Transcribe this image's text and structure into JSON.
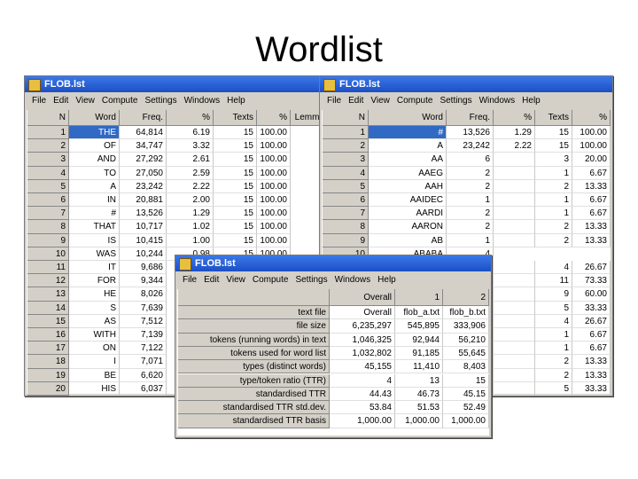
{
  "title": "Wordlist",
  "windows": [
    {
      "title": "FLOB.lst",
      "menu": [
        "File",
        "Edit",
        "View",
        "Compute",
        "Settings",
        "Windows",
        "Help"
      ],
      "columns": [
        "N",
        "Word",
        "Freq.",
        "%",
        "Texts",
        "%",
        "Lemmas"
      ],
      "rows": [
        [
          "1",
          "THE",
          "64,814",
          "6.19",
          "15",
          "100.00"
        ],
        [
          "2",
          "OF",
          "34,747",
          "3.32",
          "15",
          "100.00"
        ],
        [
          "3",
          "AND",
          "27,292",
          "2.61",
          "15",
          "100.00"
        ],
        [
          "4",
          "TO",
          "27,050",
          "2.59",
          "15",
          "100.00"
        ],
        [
          "5",
          "A",
          "23,242",
          "2.22",
          "15",
          "100.00"
        ],
        [
          "6",
          "IN",
          "20,881",
          "2.00",
          "15",
          "100.00"
        ],
        [
          "7",
          "#",
          "13,526",
          "1.29",
          "15",
          "100.00"
        ],
        [
          "8",
          "THAT",
          "10,717",
          "1.02",
          "15",
          "100.00"
        ],
        [
          "9",
          "IS",
          "10,415",
          "1.00",
          "15",
          "100.00"
        ],
        [
          "10",
          "WAS",
          "10,244",
          "0.98",
          "15",
          "100.00"
        ],
        [
          "11",
          "IT",
          "9,686"
        ],
        [
          "12",
          "FOR",
          "9,344"
        ],
        [
          "13",
          "HE",
          "8,026"
        ],
        [
          "14",
          "S",
          "7,639"
        ],
        [
          "15",
          "AS",
          "7,512"
        ],
        [
          "16",
          "WITH",
          "7,139"
        ],
        [
          "17",
          "ON",
          "7,122"
        ],
        [
          "18",
          "I",
          "7,071"
        ],
        [
          "19",
          "BE",
          "6,620"
        ],
        [
          "20",
          "HIS",
          "6,037"
        ]
      ]
    },
    {
      "title": "FLOB.lst",
      "menu": [
        "File",
        "Edit",
        "View",
        "Compute",
        "Settings",
        "Windows",
        "Help"
      ],
      "columns": [
        "N",
        "Word",
        "Freq.",
        "%",
        "Texts",
        "%"
      ],
      "rows": [
        [
          "1",
          "#",
          "13,526",
          "1.29",
          "15",
          "100.00"
        ],
        [
          "2",
          "A",
          "23,242",
          "2.22",
          "15",
          "100.00"
        ],
        [
          "3",
          "AA",
          "6",
          null,
          "3",
          "20.00"
        ],
        [
          "4",
          "AAEG",
          "2",
          null,
          "1",
          "6.67"
        ],
        [
          "5",
          "AAH",
          "2",
          null,
          "2",
          "13.33"
        ],
        [
          "6",
          "AAIDEC",
          "1",
          null,
          "1",
          "6.67"
        ],
        [
          "7",
          "AARDI",
          "2",
          null,
          "1",
          "6.67"
        ],
        [
          "8",
          "AARON",
          "2",
          null,
          "2",
          "13.33"
        ],
        [
          "9",
          "AB",
          "1",
          null,
          "2",
          "13.33"
        ],
        [
          "10",
          "ABABA",
          "4"
        ],
        [
          null,
          null,
          null,
          null,
          "4",
          "26.67"
        ],
        [
          null,
          null,
          null,
          null,
          "11",
          "73.33"
        ],
        [
          null,
          null,
          null,
          null,
          "9",
          "60.00"
        ],
        [
          null,
          null,
          null,
          null,
          "5",
          "33.33"
        ],
        [
          null,
          null,
          null,
          null,
          "4",
          "26.67"
        ],
        [
          null,
          null,
          null,
          null,
          "1",
          "6.67"
        ],
        [
          null,
          null,
          null,
          null,
          "1",
          "6.67"
        ],
        [
          null,
          null,
          null,
          null,
          "2",
          "13.33"
        ],
        [
          null,
          null,
          null,
          null,
          "2",
          "13.33"
        ],
        [
          null,
          null,
          null,
          null,
          "5",
          "33.33"
        ]
      ]
    },
    {
      "title": "FLOB.lst",
      "menu": [
        "File",
        "Edit",
        "View",
        "Compute",
        "Settings",
        "Windows",
        "Help"
      ],
      "columns": [
        "Overall",
        "1",
        "2"
      ],
      "rows": [
        [
          "text file",
          "Overall",
          "flob_a.txt",
          "flob_b.txt"
        ],
        [
          "file size",
          "6,235,297",
          "545,895",
          "333,906"
        ],
        [
          "tokens (running words) in text",
          "1,046,325",
          "92,944",
          "56,210"
        ],
        [
          "tokens used for word list",
          "1,032,802",
          "91,185",
          "55,645"
        ],
        [
          "types (distinct words)",
          "45,155",
          "11,410",
          "8,403"
        ],
        [
          "type/token ratio (TTR)",
          "4",
          "13",
          "15"
        ],
        [
          "standardised TTR",
          "44.43",
          "46.73",
          "45.15"
        ],
        [
          "standardised TTR std.dev.",
          "53.84",
          "51.53",
          "52.49"
        ],
        [
          "standardised TTR basis",
          "1,000.00",
          "1,000.00",
          "1,000.00"
        ]
      ]
    }
  ]
}
